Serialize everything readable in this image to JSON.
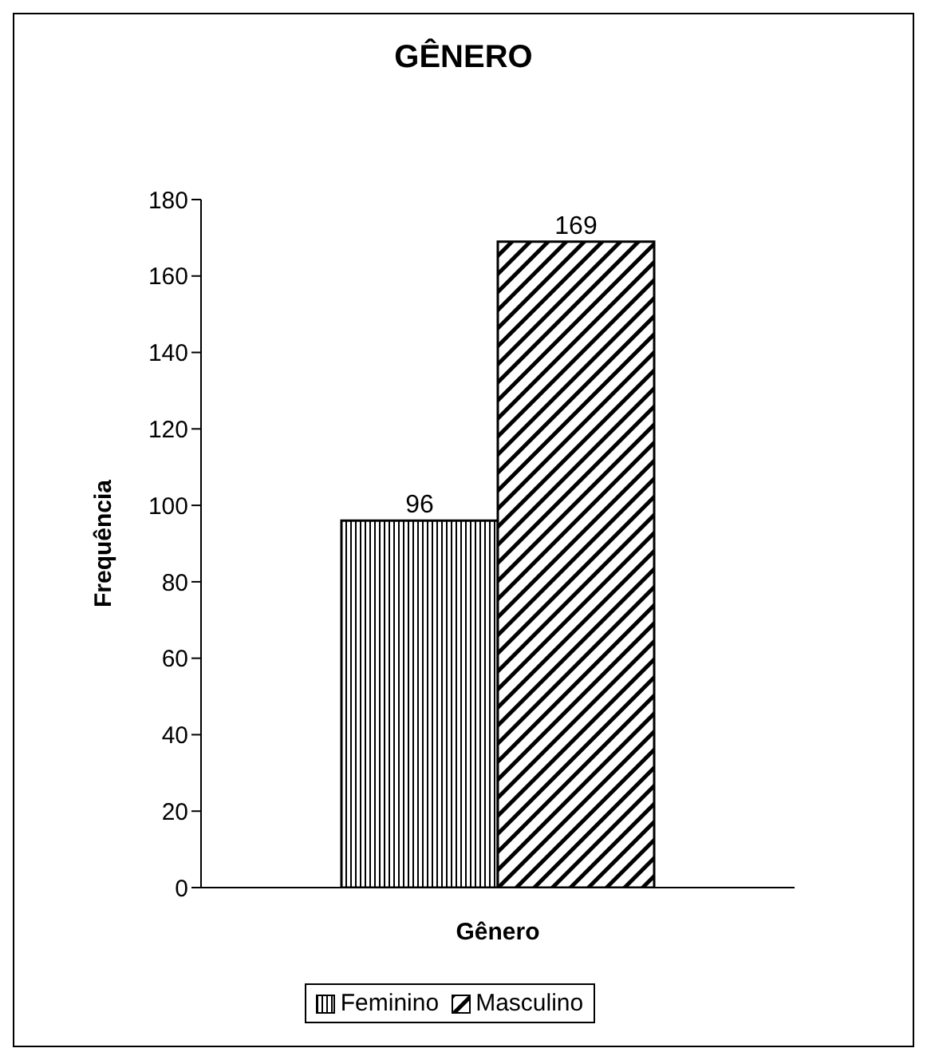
{
  "chart_data": {
    "type": "bar",
    "title": "GÊNERO",
    "xlabel": "Gênero",
    "ylabel": "Frequência",
    "categories": [
      null
    ],
    "series": [
      {
        "name": "Feminino",
        "color": "#000000",
        "values": [
          96
        ]
      },
      {
        "name": "Masculino",
        "color": "#000000",
        "values": [
          169
        ]
      }
    ],
    "ylim": [
      0,
      180
    ],
    "yticks": [
      0,
      20,
      40,
      60,
      80,
      100,
      120,
      140,
      160,
      180
    ],
    "data_labels": true,
    "grid": false,
    "legend": "bottom"
  }
}
